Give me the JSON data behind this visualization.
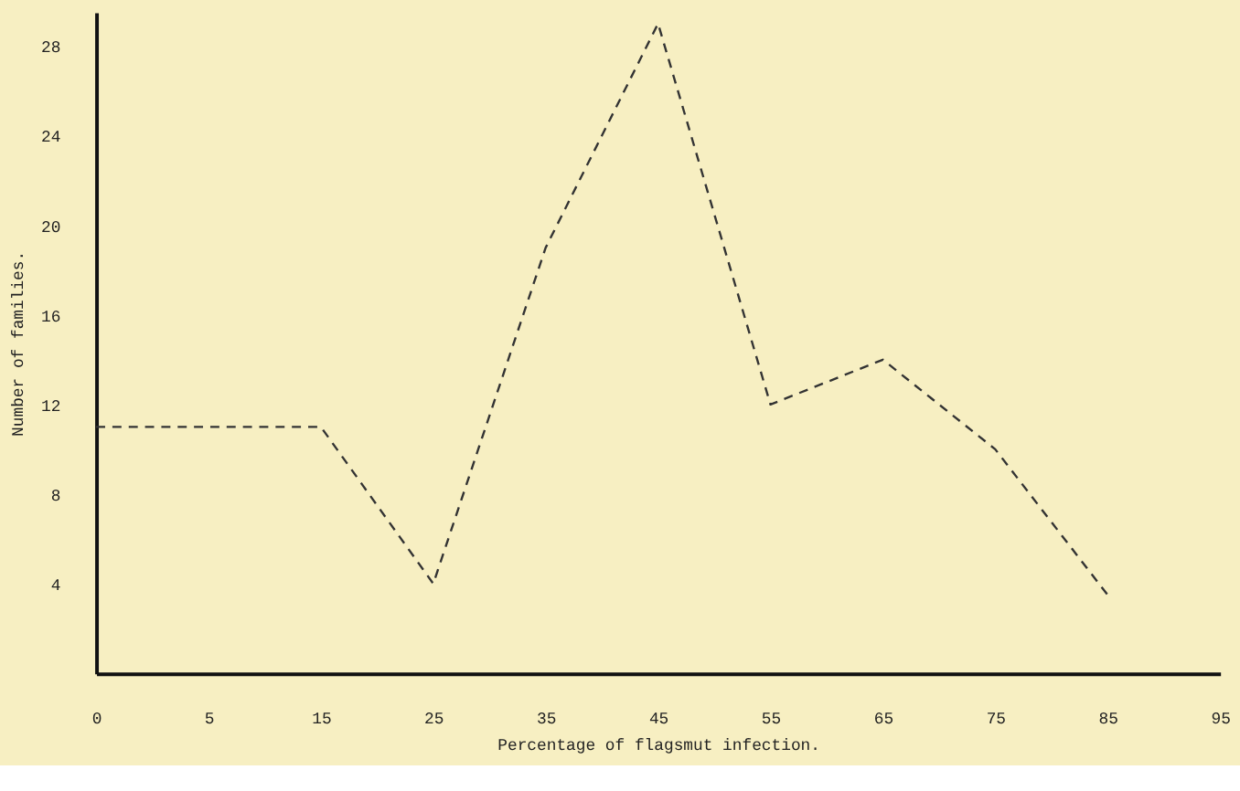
{
  "chart_data": {
    "type": "line",
    "xlabel": "Percentage of flagsmut infection.",
    "ylabel": "Number of families.",
    "categories": [
      "0",
      "5",
      "15",
      "25",
      "35",
      "45",
      "55",
      "65",
      "75",
      "85",
      "95"
    ],
    "series": [
      {
        "color": "#333333",
        "values": [
          11,
          11,
          11,
          4,
          19,
          29,
          12,
          14,
          10,
          3.5,
          null
        ]
      }
    ],
    "ylim": [
      0,
      29.5
    ],
    "yticks": [
      4,
      8,
      12,
      16,
      20,
      24,
      28
    ],
    "grid": false,
    "legend": false,
    "marker": "none",
    "line_style": "dashed"
  }
}
